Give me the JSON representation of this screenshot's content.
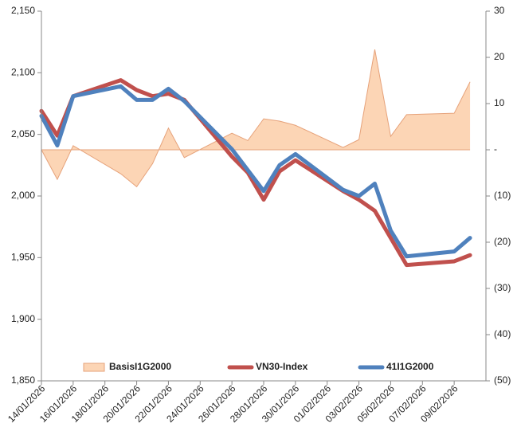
{
  "chart_data": {
    "type": "line",
    "x": [
      "14/01/2026",
      "15/01/2026",
      "16/01/2026",
      "19/01/2026",
      "20/01/2026",
      "21/01/2026",
      "22/01/2026",
      "23/01/2026",
      "26/01/2026",
      "27/01/2026",
      "28/01/2026",
      "29/01/2026",
      "30/01/2026",
      "02/02/2026",
      "03/02/2026",
      "04/02/2026",
      "05/02/2026",
      "06/02/2026",
      "09/02/2026",
      "10/02/2026"
    ],
    "xlim": [
      "14/01/2026",
      "11/02/2026"
    ],
    "xticks": [
      "14/01/2026",
      "16/01/2026",
      "18/01/2026",
      "20/01/2026",
      "22/01/2026",
      "24/01/2026",
      "26/01/2026",
      "28/01/2026",
      "30/01/2026",
      "01/02/2026",
      "03/02/2026",
      "05/02/2026",
      "07/02/2026",
      "09/02/2026"
    ],
    "ylim": [
      1850,
      2150
    ],
    "yticks": [
      {
        "value": 1850,
        "label": "1,850"
      },
      {
        "value": 1900,
        "label": "1,900"
      },
      {
        "value": 1950,
        "label": "1,950"
      },
      {
        "value": 2000,
        "label": "2,000"
      },
      {
        "value": 2050,
        "label": "2,050"
      },
      {
        "value": 2100,
        "label": "2,100"
      },
      {
        "value": 2150,
        "label": "2,150"
      }
    ],
    "y2lim": [
      -50,
      30
    ],
    "y2ticks": [
      30,
      20,
      10,
      {
        "value": 0,
        "label": "-"
      },
      {
        "value": -10,
        "label": "(10)"
      },
      {
        "value": -20,
        "label": "(20)"
      },
      {
        "value": -30,
        "label": "(30)"
      },
      {
        "value": -40,
        "label": "(40)"
      },
      {
        "value": -50,
        "label": "(50)"
      }
    ],
    "grid": false,
    "legend": "bottom",
    "series": [
      {
        "name": "BasisI1G2000",
        "style": "area",
        "axis": "y2",
        "color": "#fcd5b5",
        "edge_color": "#e6a27a",
        "values": [
          0,
          -6.4,
          0.9,
          -5.2,
          -8,
          -3,
          4.7,
          -1.7,
          3.6,
          2,
          6.7,
          6.2,
          5.3,
          0.5,
          2.2,
          21.7,
          2.9,
          7.6,
          7.9,
          14.7
        ]
      },
      {
        "name": "VN30-Index",
        "style": "line",
        "color": "#c0504d",
        "values": [
          2069,
          2049,
          2081,
          2094,
          2086,
          2081,
          2083,
          2078,
          2032,
          2019,
          1997,
          2020,
          2029,
          2004,
          1997,
          1988,
          1966,
          1944,
          1947,
          1952
        ]
      },
      {
        "name": "41I1G2000",
        "style": "line",
        "color": "#4f81bd",
        "values": [
          2065,
          2041,
          2081,
          2089,
          2078,
          2078,
          2087,
          2077,
          2038,
          2021,
          2004,
          2025,
          2034,
          2005,
          2000,
          2010,
          1972,
          1951,
          1955,
          1966
        ]
      }
    ]
  }
}
